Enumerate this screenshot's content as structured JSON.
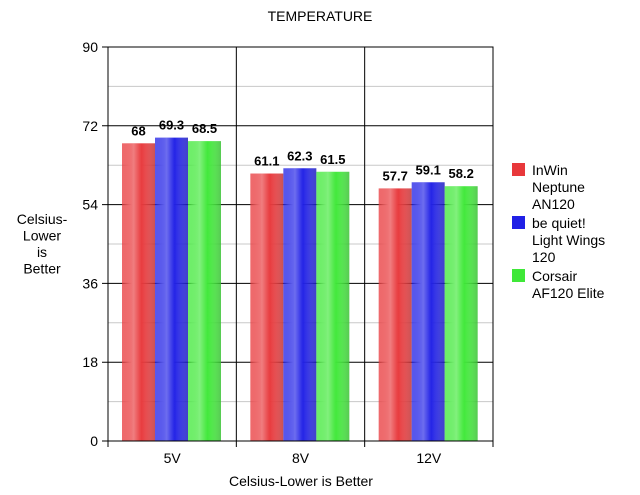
{
  "chart_data": {
    "type": "bar",
    "title": "TEMPERATURE",
    "xlabel": "Celsius-Lower is Better",
    "ylabel_lines": [
      "Celsius-",
      "Lower",
      "is",
      "Better"
    ],
    "categories": [
      "5V",
      "8V",
      "12V"
    ],
    "ylim": [
      0,
      90
    ],
    "yticks": [
      0,
      18,
      36,
      54,
      72,
      90
    ],
    "minor_grid_step": 9,
    "series": [
      {
        "name": "InWin Neptune AN120",
        "legend_lines": [
          "InWin",
          "Neptune",
          "AN120"
        ],
        "color": "#e8383b",
        "values": [
          68,
          61.1,
          57.7
        ],
        "labels": [
          "68",
          "61.1",
          "57.7"
        ]
      },
      {
        "name": "be quiet! Light Wings 120",
        "legend_lines": [
          "be quiet!",
          "Light Wings",
          "120"
        ],
        "color": "#2020e6",
        "values": [
          69.3,
          62.3,
          59.1
        ],
        "labels": [
          "69.3",
          "62.3",
          "59.1"
        ]
      },
      {
        "name": "Corsair AF120 Elite",
        "legend_lines": [
          "Corsair",
          "AF120 Elite"
        ],
        "color": "#3fe838",
        "values": [
          68.5,
          61.5,
          58.2
        ],
        "labels": [
          "68.5",
          "61.5",
          "58.2"
        ]
      }
    ]
  }
}
